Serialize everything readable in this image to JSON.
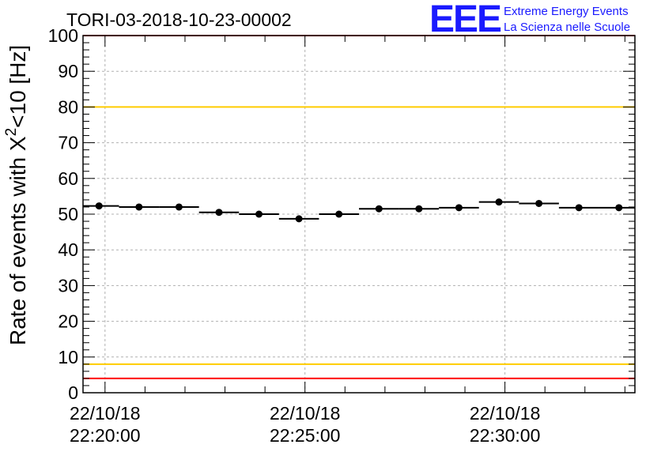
{
  "chart_data": {
    "type": "scatter",
    "title": "TORI-03-2018-10-23-00002",
    "ylabel_prefix": "Rate of events with X",
    "ylabel_sup": "2",
    "ylabel_suffix": "<10 [Hz]",
    "xlabel": "",
    "ylim": [
      0,
      100
    ],
    "yticks": [
      "0",
      "10",
      "20",
      "30",
      "40",
      "50",
      "60",
      "70",
      "80",
      "90",
      "100"
    ],
    "xlim_minutes": [
      -0.55,
      13.25
    ],
    "xtick_labels": [
      {
        "minute": 0,
        "date": "22/10/18",
        "time": "22:20:00"
      },
      {
        "minute": 5,
        "date": "22/10/18",
        "time": "22:25:00"
      },
      {
        "minute": 10,
        "date": "22/10/18",
        "time": "22:30:00"
      }
    ],
    "bin_width_minutes": 1,
    "x_minutes": [
      -0.15,
      0.85,
      1.85,
      2.85,
      3.85,
      4.85,
      5.85,
      6.85,
      7.85,
      8.85,
      9.85,
      10.85,
      11.85,
      12.85
    ],
    "values": [
      52.3,
      52.0,
      52.0,
      50.5,
      50.0,
      48.7,
      50.0,
      51.5,
      51.5,
      51.8,
      53.4,
      53.0,
      51.8,
      51.8
    ],
    "reference_lines": [
      {
        "y": 100,
        "color": "#ff0000"
      },
      {
        "y": 80,
        "color": "#ffcc00"
      },
      {
        "y": 8,
        "color": "#ffcc00"
      },
      {
        "y": 4,
        "color": "#ff0000"
      }
    ],
    "grid": true
  },
  "logo": {
    "mark": "EEE",
    "line1": "Extreme Energy Events",
    "line2": "La Scienza nelle Scuole",
    "color": "#1a1aff"
  }
}
